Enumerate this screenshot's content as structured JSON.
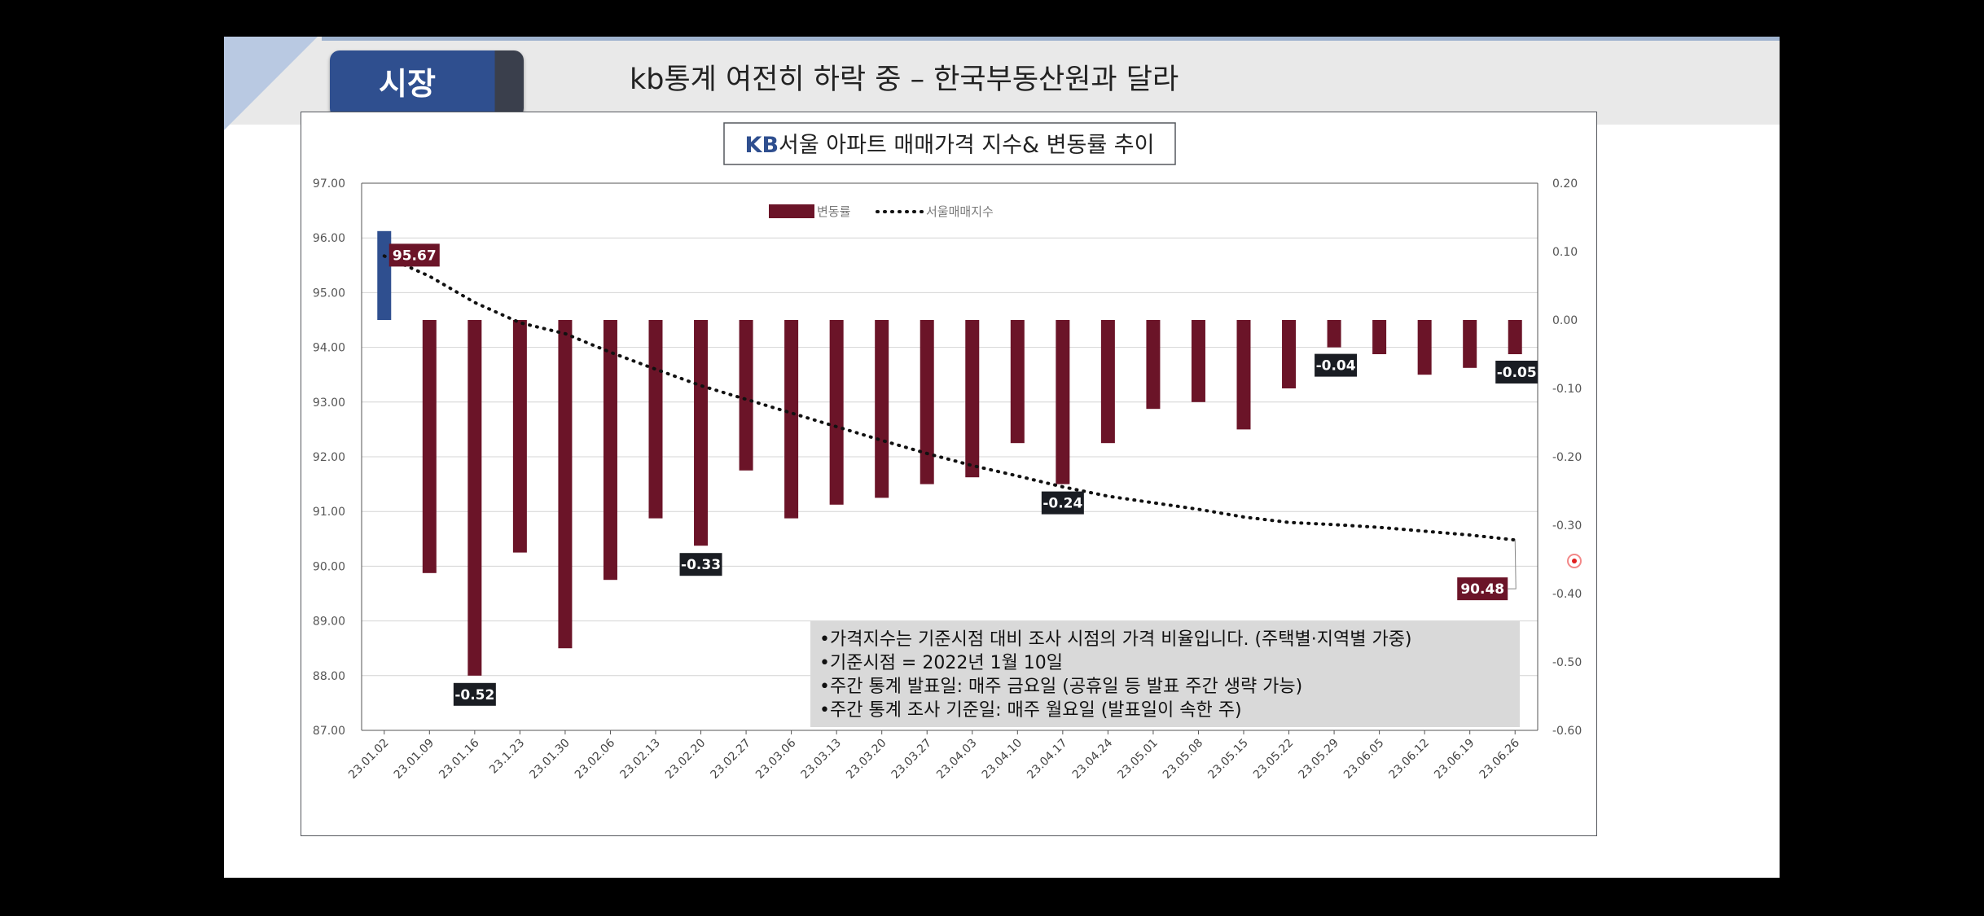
{
  "header": {
    "section_label": "시장",
    "title": "kb통계 여전히 하락 중 – 한국부동산원과 달라"
  },
  "chart_data": {
    "type": "bar",
    "title_prefix": "KB",
    "title": "서울 아파트 매매가격 지수& 변동률 추이",
    "categories": [
      "23.01.02",
      "23.01.09",
      "23.01.16",
      "23.1.23",
      "23.01.30",
      "23.02.06",
      "23.02.13",
      "23.02.20",
      "23.02.27",
      "23.03.06",
      "23.03.13",
      "23.03.20",
      "23.03.27",
      "23.04.03",
      "23.04.10",
      "23.04.17",
      "23.04.24",
      "23.05.01",
      "23.05.08",
      "23.05.15",
      "23.05.22",
      "23.05.29",
      "23.06.05",
      "23.06.12",
      "23.06.19",
      "23.06.26"
    ],
    "series": [
      {
        "name": "변동률",
        "type": "bar",
        "axis": "right",
        "values": [
          0.13,
          -0.37,
          -0.52,
          -0.34,
          -0.48,
          -0.38,
          -0.29,
          -0.33,
          -0.22,
          -0.29,
          -0.27,
          -0.26,
          -0.24,
          -0.23,
          -0.18,
          -0.24,
          -0.18,
          -0.13,
          -0.12,
          -0.16,
          -0.1,
          -0.04,
          -0.05,
          -0.08,
          -0.07,
          -0.05
        ],
        "color": "#6b1428",
        "highlight_color": "#2f4f8f"
      },
      {
        "name": "서울매매지수",
        "type": "line",
        "axis": "left",
        "values": [
          95.67,
          95.3,
          94.82,
          94.45,
          94.25,
          93.91,
          93.6,
          93.3,
          93.05,
          92.8,
          92.55,
          92.3,
          92.06,
          91.84,
          91.65,
          91.45,
          91.28,
          91.16,
          91.04,
          90.9,
          90.8,
          90.76,
          90.71,
          90.64,
          90.57,
          90.48
        ],
        "color": "#111111"
      }
    ],
    "y_left_ticks": [
      "97.00",
      "96.00",
      "95.00",
      "94.00",
      "93.00",
      "92.00",
      "91.00",
      "90.00",
      "89.00",
      "88.00",
      "87.00"
    ],
    "y_right_ticks": [
      "0.20",
      "0.10",
      "0.00",
      "-0.10",
      "-0.20",
      "-0.30",
      "-0.40",
      "-0.50",
      "-0.60"
    ],
    "y_left_range": [
      87,
      97
    ],
    "y_right_range": [
      -0.6,
      0.2
    ],
    "data_labels": [
      {
        "series": "서울매매지수",
        "index": 0,
        "text": "95.67"
      },
      {
        "series": "서울매매지수",
        "index": 25,
        "text": "90.48"
      },
      {
        "series": "변동률",
        "index": 2,
        "text": "-0.52"
      },
      {
        "series": "변동률",
        "index": 7,
        "text": "-0.33"
      },
      {
        "series": "변동률",
        "index": 15,
        "text": "-0.24"
      },
      {
        "series": "변동률",
        "index": 21,
        "text": "-0.04"
      },
      {
        "series": "변동률",
        "index": 25,
        "text": "-0.05"
      }
    ],
    "grid": true,
    "legend_position": "top-center",
    "notes": [
      "•가격지수는 기준시점 대비 조사 시점의 가격 비율입니다. (주택별·지역별 가중)",
      "•기준시점 = 2022년 1월 10일",
      "•주간 통계 발표일: 매주 금요일 (공휴일 등 발표 주간 생략 가능)",
      "•주간 통계 조사 기준일: 매주 월요일 (발표일이 속한 주)"
    ]
  }
}
